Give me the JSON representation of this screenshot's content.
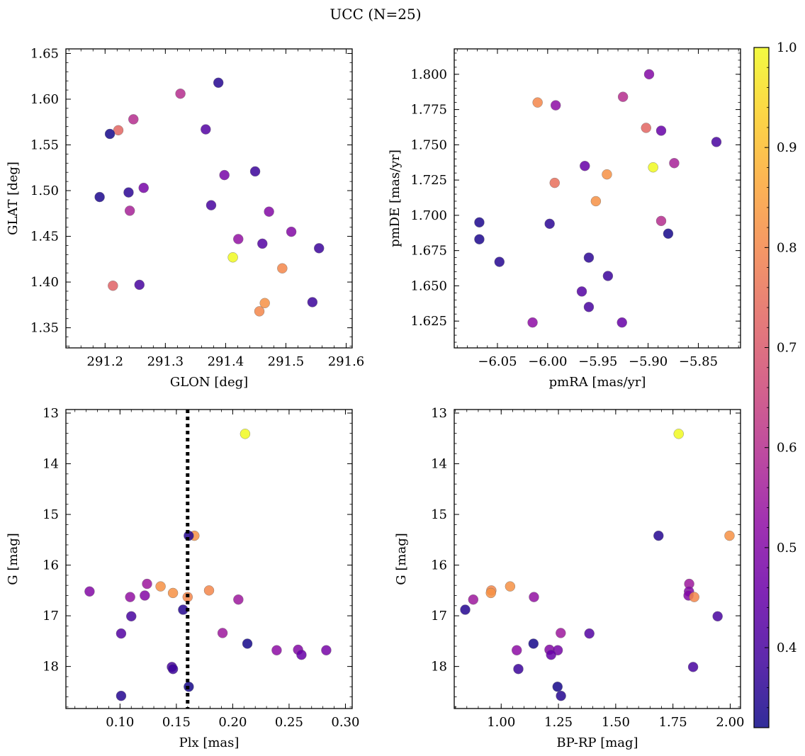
{
  "figure": {
    "suptitle": "UCC (N=25)"
  },
  "chart_data": [
    {
      "id": "sky",
      "type": "scatter",
      "xlabel": "GLON [deg]",
      "ylabel": "GLAT [deg]",
      "xlim": [
        291.135,
        291.61
      ],
      "ylim": [
        1.328,
        1.655
      ],
      "xticks": [
        291.2,
        291.3,
        291.4,
        291.5,
        291.6
      ],
      "xtick_labels": [
        "291.2",
        "291.3",
        "291.4",
        "291.5",
        "291.6"
      ],
      "yticks": [
        1.35,
        1.4,
        1.45,
        1.5,
        1.55,
        1.6,
        1.65
      ],
      "ytick_labels": [
        "1.35",
        "1.40",
        "1.45",
        "1.50",
        "1.55",
        "1.60",
        "1.65"
      ],
      "points": [
        {
          "x": 291.388,
          "y": 1.618,
          "c": 0.35
        },
        {
          "x": 291.325,
          "y": 1.606,
          "c": 0.6
        },
        {
          "x": 291.247,
          "y": 1.578,
          "c": 0.6
        },
        {
          "x": 291.222,
          "y": 1.566,
          "c": 0.73
        },
        {
          "x": 291.367,
          "y": 1.567,
          "c": 0.42
        },
        {
          "x": 291.208,
          "y": 1.562,
          "c": 0.33
        },
        {
          "x": 291.449,
          "y": 1.521,
          "c": 0.38
        },
        {
          "x": 291.398,
          "y": 1.517,
          "c": 0.48
        },
        {
          "x": 291.264,
          "y": 1.503,
          "c": 0.48
        },
        {
          "x": 291.239,
          "y": 1.498,
          "c": 0.36
        },
        {
          "x": 291.191,
          "y": 1.493,
          "c": 0.34
        },
        {
          "x": 291.376,
          "y": 1.484,
          "c": 0.4
        },
        {
          "x": 291.241,
          "y": 1.478,
          "c": 0.57
        },
        {
          "x": 291.472,
          "y": 1.477,
          "c": 0.5
        },
        {
          "x": 291.509,
          "y": 1.455,
          "c": 0.5
        },
        {
          "x": 291.421,
          "y": 1.447,
          "c": 0.53
        },
        {
          "x": 291.461,
          "y": 1.442,
          "c": 0.42
        },
        {
          "x": 291.555,
          "y": 1.437,
          "c": 0.38
        },
        {
          "x": 291.412,
          "y": 1.427,
          "c": 1.0
        },
        {
          "x": 291.494,
          "y": 1.415,
          "c": 0.8
        },
        {
          "x": 291.213,
          "y": 1.396,
          "c": 0.72
        },
        {
          "x": 291.257,
          "y": 1.397,
          "c": 0.4
        },
        {
          "x": 291.465,
          "y": 1.377,
          "c": 0.82
        },
        {
          "x": 291.544,
          "y": 1.378,
          "c": 0.38
        },
        {
          "x": 291.456,
          "y": 1.368,
          "c": 0.8
        }
      ]
    },
    {
      "id": "pm",
      "type": "scatter",
      "xlabel": "pmRA [mas/yr]",
      "ylabel": "pmDE [mas/yr]",
      "xlim": [
        -6.093,
        -5.808
      ],
      "ylim": [
        1.606,
        1.818
      ],
      "xticks": [
        -6.05,
        -6.0,
        -5.95,
        -5.9,
        -5.85
      ],
      "xtick_labels": [
        "−6.05",
        "−6.00",
        "−5.95",
        "−5.90",
        "−5.85"
      ],
      "yticks": [
        1.625,
        1.65,
        1.675,
        1.7,
        1.725,
        1.75,
        1.775,
        1.8
      ],
      "ytick_labels": [
        "1.625",
        "1.650",
        "1.675",
        "1.700",
        "1.725",
        "1.750",
        "1.775",
        "1.800"
      ],
      "points": [
        {
          "x": -5.899,
          "y": 1.8,
          "c": 0.5
        },
        {
          "x": -5.925,
          "y": 1.784,
          "c": 0.6
        },
        {
          "x": -6.01,
          "y": 1.78,
          "c": 0.8
        },
        {
          "x": -5.992,
          "y": 1.778,
          "c": 0.52
        },
        {
          "x": -5.902,
          "y": 1.762,
          "c": 0.73
        },
        {
          "x": -5.887,
          "y": 1.76,
          "c": 0.45
        },
        {
          "x": -5.832,
          "y": 1.752,
          "c": 0.4
        },
        {
          "x": -5.874,
          "y": 1.737,
          "c": 0.57
        },
        {
          "x": -5.963,
          "y": 1.735,
          "c": 0.45
        },
        {
          "x": -5.895,
          "y": 1.734,
          "c": 1.0
        },
        {
          "x": -5.941,
          "y": 1.729,
          "c": 0.82
        },
        {
          "x": -5.993,
          "y": 1.723,
          "c": 0.75
        },
        {
          "x": -5.952,
          "y": 1.71,
          "c": 0.82
        },
        {
          "x": -5.887,
          "y": 1.696,
          "c": 0.6
        },
        {
          "x": -6.068,
          "y": 1.695,
          "c": 0.34
        },
        {
          "x": -5.998,
          "y": 1.694,
          "c": 0.36
        },
        {
          "x": -5.88,
          "y": 1.687,
          "c": 0.33
        },
        {
          "x": -6.068,
          "y": 1.683,
          "c": 0.34
        },
        {
          "x": -5.959,
          "y": 1.67,
          "c": 0.36
        },
        {
          "x": -6.048,
          "y": 1.667,
          "c": 0.35
        },
        {
          "x": -5.94,
          "y": 1.657,
          "c": 0.38
        },
        {
          "x": -5.966,
          "y": 1.646,
          "c": 0.42
        },
        {
          "x": -5.959,
          "y": 1.635,
          "c": 0.4
        },
        {
          "x": -6.015,
          "y": 1.624,
          "c": 0.52
        },
        {
          "x": -5.926,
          "y": 1.624,
          "c": 0.45
        }
      ]
    },
    {
      "id": "plx",
      "type": "scatter",
      "xlabel": "Plx [mas]",
      "ylabel": "G [mag]",
      "xlim": [
        0.052,
        0.306
      ],
      "ylim": [
        18.83,
        12.93
      ],
      "xticks": [
        0.1,
        0.15,
        0.2,
        0.25,
        0.3
      ],
      "xtick_labels": [
        "0.10",
        "0.15",
        "0.20",
        "0.25",
        "0.30"
      ],
      "yticks": [
        13,
        14,
        15,
        16,
        17,
        18
      ],
      "ytick_labels": [
        "13",
        "14",
        "15",
        "16",
        "17",
        "18"
      ],
      "vline": {
        "x": 0.16,
        "style": "dotted",
        "color": "#000000"
      },
      "points": [
        {
          "x": 0.211,
          "y": 13.41,
          "c": 1.0
        },
        {
          "x": 0.166,
          "y": 15.42,
          "c": 0.82
        },
        {
          "x": 0.161,
          "y": 15.42,
          "c": 0.35
        },
        {
          "x": 0.073,
          "y": 16.52,
          "c": 0.5
        },
        {
          "x": 0.124,
          "y": 16.37,
          "c": 0.55
        },
        {
          "x": 0.136,
          "y": 16.42,
          "c": 0.82
        },
        {
          "x": 0.179,
          "y": 16.5,
          "c": 0.8
        },
        {
          "x": 0.147,
          "y": 16.55,
          "c": 0.82
        },
        {
          "x": 0.109,
          "y": 16.63,
          "c": 0.53
        },
        {
          "x": 0.122,
          "y": 16.6,
          "c": 0.5
        },
        {
          "x": 0.16,
          "y": 16.63,
          "c": 0.8
        },
        {
          "x": 0.205,
          "y": 16.68,
          "c": 0.55
        },
        {
          "x": 0.156,
          "y": 16.88,
          "c": 0.35
        },
        {
          "x": 0.11,
          "y": 17.01,
          "c": 0.4
        },
        {
          "x": 0.101,
          "y": 17.35,
          "c": 0.42
        },
        {
          "x": 0.191,
          "y": 17.34,
          "c": 0.55
        },
        {
          "x": 0.213,
          "y": 17.55,
          "c": 0.33
        },
        {
          "x": 0.239,
          "y": 17.68,
          "c": 0.52
        },
        {
          "x": 0.258,
          "y": 17.67,
          "c": 0.5
        },
        {
          "x": 0.283,
          "y": 17.68,
          "c": 0.48
        },
        {
          "x": 0.261,
          "y": 17.77,
          "c": 0.45
        },
        {
          "x": 0.146,
          "y": 18.01,
          "c": 0.4
        },
        {
          "x": 0.147,
          "y": 18.05,
          "c": 0.38
        },
        {
          "x": 0.161,
          "y": 18.4,
          "c": 0.33
        },
        {
          "x": 0.101,
          "y": 18.58,
          "c": 0.35
        }
      ]
    },
    {
      "id": "cmd",
      "type": "scatter",
      "xlabel": "BP-RP [mag]",
      "ylabel": "G [mag]",
      "xlim": [
        0.795,
        2.045
      ],
      "ylim": [
        18.83,
        12.93
      ],
      "xticks": [
        1.0,
        1.25,
        1.5,
        1.75,
        2.0
      ],
      "xtick_labels": [
        "1.00",
        "1.25",
        "1.50",
        "1.75",
        "2.00"
      ],
      "yticks": [
        13,
        14,
        15,
        16,
        17,
        18
      ],
      "ytick_labels": [
        "13",
        "14",
        "15",
        "16",
        "17",
        "18"
      ],
      "points": [
        {
          "x": 1.775,
          "y": 13.41,
          "c": 1.0
        },
        {
          "x": 1.687,
          "y": 15.42,
          "c": 0.35
        },
        {
          "x": 1.997,
          "y": 15.42,
          "c": 0.82
        },
        {
          "x": 1.821,
          "y": 16.37,
          "c": 0.55
        },
        {
          "x": 1.039,
          "y": 16.42,
          "c": 0.82
        },
        {
          "x": 0.957,
          "y": 16.5,
          "c": 0.8
        },
        {
          "x": 1.82,
          "y": 16.52,
          "c": 0.5
        },
        {
          "x": 0.955,
          "y": 16.55,
          "c": 0.82
        },
        {
          "x": 1.818,
          "y": 16.6,
          "c": 0.5
        },
        {
          "x": 1.143,
          "y": 16.63,
          "c": 0.53
        },
        {
          "x": 1.843,
          "y": 16.63,
          "c": 0.8
        },
        {
          "x": 0.878,
          "y": 16.68,
          "c": 0.55
        },
        {
          "x": 0.843,
          "y": 16.88,
          "c": 0.35
        },
        {
          "x": 1.945,
          "y": 17.01,
          "c": 0.4
        },
        {
          "x": 1.385,
          "y": 17.35,
          "c": 0.42
        },
        {
          "x": 1.26,
          "y": 17.34,
          "c": 0.55
        },
        {
          "x": 1.141,
          "y": 17.55,
          "c": 0.33
        },
        {
          "x": 1.068,
          "y": 17.68,
          "c": 0.52
        },
        {
          "x": 1.211,
          "y": 17.67,
          "c": 0.5
        },
        {
          "x": 1.247,
          "y": 17.68,
          "c": 0.48
        },
        {
          "x": 1.218,
          "y": 17.77,
          "c": 0.45
        },
        {
          "x": 1.838,
          "y": 18.01,
          "c": 0.4
        },
        {
          "x": 1.075,
          "y": 18.05,
          "c": 0.38
        },
        {
          "x": 1.246,
          "y": 18.4,
          "c": 0.33
        },
        {
          "x": 1.261,
          "y": 18.58,
          "c": 0.35
        }
      ]
    }
  ],
  "colorbar": {
    "colormap": "plasma",
    "vmin": 0.32,
    "vmax": 1.0,
    "ticks": [
      0.4,
      0.5,
      0.6,
      0.7,
      0.8,
      0.9,
      1.0
    ],
    "tick_labels": [
      "0.4",
      "0.5",
      "0.6",
      "0.7",
      "0.8",
      "0.9",
      "1.0"
    ],
    "colors": [
      "#0d0887",
      "#41049d",
      "#6a00a8",
      "#8f0da4",
      "#b12a90",
      "#cc4778",
      "#e16462",
      "#f2844b",
      "#fca636",
      "#fcce25",
      "#f0f921"
    ]
  }
}
